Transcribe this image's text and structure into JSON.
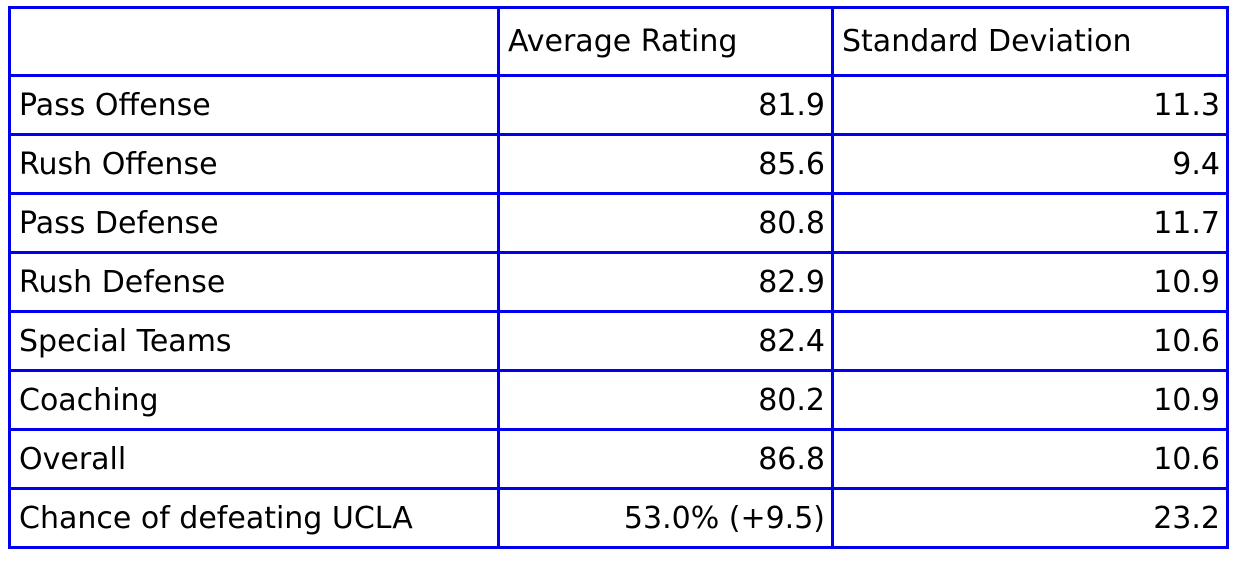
{
  "colors": {
    "border": "#0000EE",
    "text": "#000000",
    "background": "#FFFFFF"
  },
  "chart_data": {
    "type": "table",
    "columns": [
      "",
      "Average Rating",
      "Standard Deviation"
    ],
    "rows": [
      [
        "Pass Offense",
        "81.9",
        "11.3"
      ],
      [
        "Rush Offense",
        "85.6",
        "9.4"
      ],
      [
        "Pass Defense",
        "80.8",
        "11.7"
      ],
      [
        "Rush Defense",
        "82.9",
        "10.9"
      ],
      [
        "Special Teams",
        "82.4",
        "10.6"
      ],
      [
        "Coaching",
        "80.2",
        "10.9"
      ],
      [
        "Overall",
        "86.8",
        "10.6"
      ],
      [
        "Chance of defeating UCLA",
        "53.0% (+9.5)",
        "23.2"
      ]
    ],
    "title": "",
    "notes": "Team category ratings table with average rating, standard deviation, and win chance vs UCLA"
  }
}
